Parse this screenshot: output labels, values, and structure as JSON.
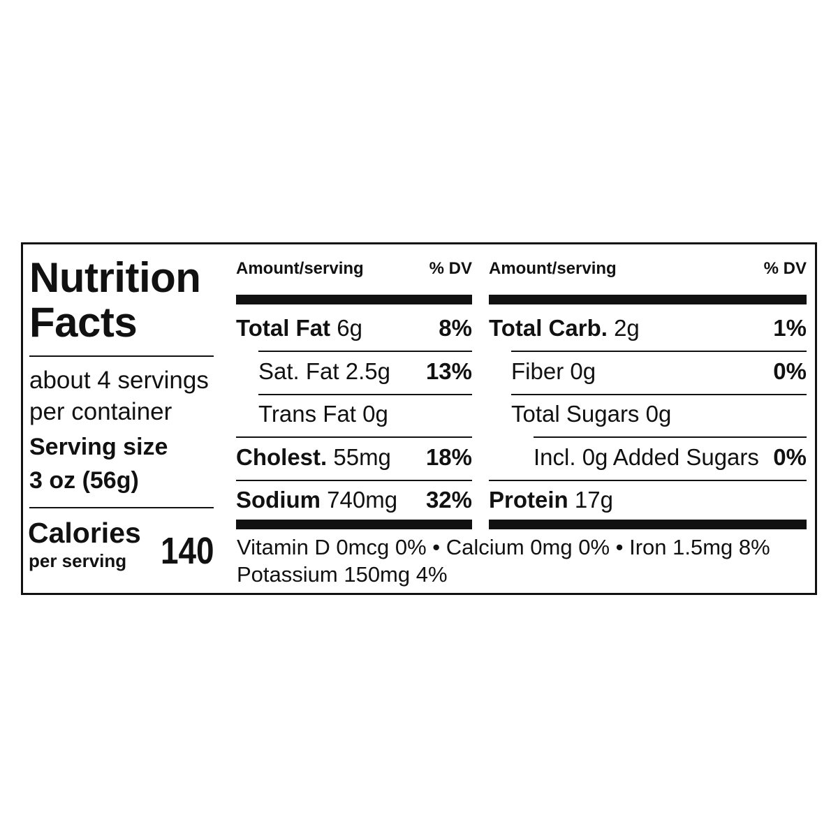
{
  "title": "Nutrition Facts",
  "servings": "about 4 servings per container",
  "serving_size": {
    "label": "Serving size",
    "value": "3 oz (56g)"
  },
  "calories": {
    "label": "Calories",
    "sublabel": "per serving",
    "value": 140
  },
  "columns": [
    {
      "amount_header": "Amount/serving",
      "dv_header": "% DV",
      "rows": [
        {
          "name": "Total Fat",
          "amount": "6g",
          "dv": "8%",
          "bold": true,
          "indent": 0
        },
        {
          "name": "Sat. Fat",
          "amount": "2.5g",
          "dv": "13%",
          "bold": false,
          "indent": 1
        },
        {
          "name": "Trans Fat",
          "amount": "0g",
          "dv": null,
          "bold": false,
          "indent": 1
        },
        {
          "name": "Cholest.",
          "amount": "55mg",
          "dv": "18%",
          "bold": true,
          "indent": 0
        },
        {
          "name": "Sodium",
          "amount": "740mg",
          "dv": "32%",
          "bold": true,
          "indent": 0
        }
      ]
    },
    {
      "amount_header": "Amount/serving",
      "dv_header": "% DV",
      "rows": [
        {
          "name": "Total Carb.",
          "amount": "2g",
          "dv": "1%",
          "bold": true,
          "indent": 0
        },
        {
          "name": "Fiber",
          "amount": "0g",
          "dv": "0%",
          "bold": false,
          "indent": 1
        },
        {
          "name": "Total Sugars",
          "amount": "0g",
          "dv": null,
          "bold": false,
          "indent": 1
        },
        {
          "name": "Incl. 0g Added Sugars",
          "amount": null,
          "dv": "0%",
          "bold": false,
          "indent": 2
        },
        {
          "name": "Protein",
          "amount": "17g",
          "dv": null,
          "bold": true,
          "indent": 0
        }
      ]
    }
  ],
  "footer": [
    "Vitamin D 0mcg 0% • Calcium 0mg 0% • Iron 1.5mg 8%",
    "Potassium 150mg 4%"
  ]
}
